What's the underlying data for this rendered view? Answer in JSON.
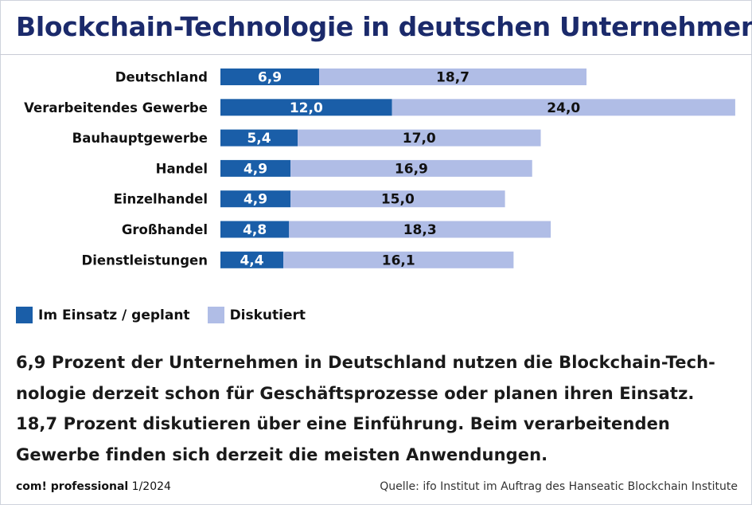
{
  "title": "Blockchain-Technologie in deutschen Unternehmen",
  "colors": {
    "dark": "#1a5ea8",
    "light": "#b0bde6",
    "title": "#1b2a6b"
  },
  "legend": {
    "series1": "Im Einsatz / geplant",
    "series2": "Diskutiert"
  },
  "chart_data": {
    "type": "bar",
    "orientation": "horizontal",
    "stacked": true,
    "categories": [
      "Deutschland",
      "Verarbeitendes Gewerbe",
      "Bauhauptgewerbe",
      "Handel",
      "Einzelhandel",
      "Großhandel",
      "Dienstleistungen"
    ],
    "series": [
      {
        "name": "Im Einsatz / geplant",
        "values": [
          6.9,
          12.0,
          5.4,
          4.9,
          4.9,
          4.8,
          4.4
        ],
        "labels": [
          "6,9",
          "12,0",
          "5,4",
          "4,9",
          "4,9",
          "4,8",
          "4,4"
        ]
      },
      {
        "name": "Diskutiert",
        "values": [
          18.7,
          24.0,
          17.0,
          16.9,
          15.0,
          18.3,
          16.1
        ],
        "labels": [
          "18,7",
          "24,0",
          "17,0",
          "16,9",
          "15,0",
          "18,3",
          "16,1"
        ]
      }
    ],
    "grid": false,
    "legend_position": "bottom-left"
  },
  "description": "6,9 Prozent der Unternehmen in Deutschland nutzen die Blockchain-Tech- nologie derzeit schon für Geschäftsprozesse oder planen ihren Einsatz. 18,7 Prozent diskutieren über eine Einführung. Beim verarbeitenden Gewerbe finden sich derzeit die meisten Anwendungen.",
  "footer": {
    "brand": "com! professional",
    "issue": "1/2024",
    "source": "Quelle: ifo Institut im Auftrag des Hanseatic Blockchain Institute"
  }
}
